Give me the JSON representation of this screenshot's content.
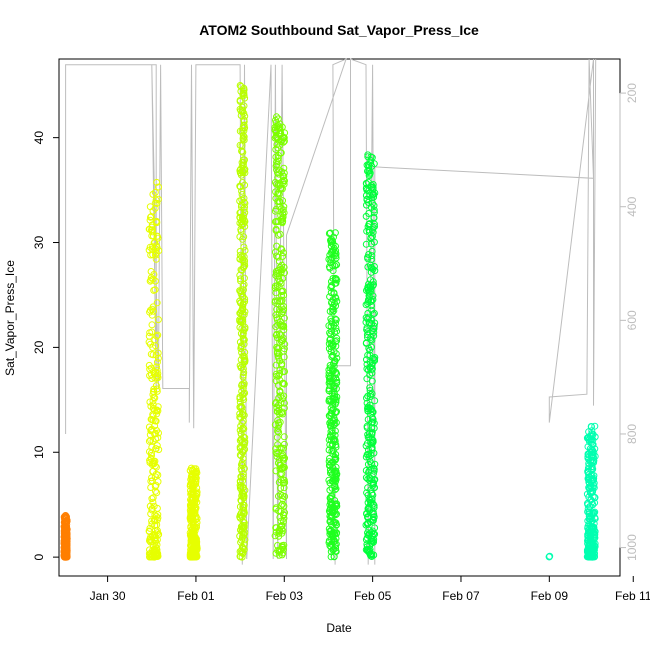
{
  "chart_data": {
    "type": "scatter",
    "title": "ATOM2 Southbound Sat_Vapor_Press_Ice",
    "xlabel": "Date",
    "ylabel": "Sat_Vapor_Press_Ice",
    "x_ticks": [
      "Jan 30",
      "Feb 01",
      "Feb 03",
      "Feb 05",
      "Feb 07",
      "Feb 09",
      "Feb 11"
    ],
    "y_ticks": [
      "0",
      "10",
      "20",
      "30",
      "40"
    ],
    "y2_ticks": [
      "200",
      "400",
      "600",
      "800",
      "1000"
    ],
    "x_range_days": [
      -1.1,
      11.6
    ],
    "ylim": [
      -1.8,
      47.5
    ],
    "y2lim": [
      1050,
      140
    ],
    "y2_reversed": true,
    "grid": false,
    "legend": "none",
    "colors": {
      "orange": "#ff7f00",
      "yellow": "#e6ff00",
      "yellow_green": "#b9ff00",
      "lime": "#7dff00",
      "light_green": "#4dff00",
      "green": "#1fff1f",
      "spring_green": "#00ff3a",
      "aqua": "#00ffb0",
      "pressure_line": "#bdbdbd"
    },
    "flights": [
      {
        "date_day": -0.95,
        "width": 0.07,
        "ymin": 0.0,
        "ymax": 4.0,
        "color": "orange",
        "style": "dense"
      },
      {
        "date_day": 1.05,
        "width": 0.22,
        "ymin": 0.0,
        "ymax": 36.0,
        "color": "yellow",
        "style": "dense"
      },
      {
        "date_day": 1.95,
        "width": 0.16,
        "ymin": 0.0,
        "ymax": 8.5,
        "color": "yellow",
        "style": "dense"
      },
      {
        "date_day": 3.05,
        "width": 0.12,
        "ymin": 0.0,
        "ymax": 45.5,
        "color": "yellow_green",
        "style": "scatter"
      },
      {
        "date_day": 3.9,
        "width": 0.22,
        "ymin": 0.0,
        "ymax": 42.0,
        "color": "lime",
        "style": "scatter"
      },
      {
        "date_day": 5.1,
        "width": 0.18,
        "ymin": 0.0,
        "ymax": 31.0,
        "color": "green",
        "style": "scatter"
      },
      {
        "date_day": 5.95,
        "width": 0.2,
        "ymin": 0.0,
        "ymax": 38.5,
        "color": "spring_green",
        "style": "scatter"
      },
      {
        "date_day": 10.0,
        "width": 0.05,
        "ymin": 0.0,
        "ymax": 0.1,
        "color": "aqua",
        "style": "sparse"
      },
      {
        "date_day": 10.95,
        "width": 0.18,
        "ymin": 0.0,
        "ymax": 12.5,
        "color": "aqua",
        "style": "dense"
      }
    ],
    "pressure_trace": [
      [
        -0.95,
        150
      ],
      [
        -0.95,
        290
      ],
      [
        -0.95,
        800
      ],
      [
        -0.95,
        150
      ],
      [
        1.1,
        150
      ],
      [
        1.1,
        720
      ],
      [
        1.0,
        150
      ],
      [
        1.15,
        720
      ],
      [
        1.2,
        150
      ],
      [
        1.25,
        720
      ],
      [
        1.85,
        720
      ],
      [
        1.85,
        780
      ],
      [
        1.9,
        150
      ],
      [
        1.95,
        790
      ],
      [
        2.0,
        150
      ],
      [
        3.0,
        150
      ],
      [
        3.05,
        1030
      ],
      [
        3.1,
        150
      ],
      [
        3.15,
        1020
      ],
      [
        3.7,
        150
      ],
      [
        3.75,
        1020
      ],
      [
        3.8,
        150
      ],
      [
        3.85,
        1020
      ],
      [
        3.95,
        150
      ],
      [
        4.05,
        1020
      ],
      [
        4.05,
        450
      ],
      [
        5.4,
        140
      ],
      [
        5.1,
        150
      ],
      [
        5.15,
        1030
      ],
      [
        5.15,
        680
      ],
      [
        5.5,
        680
      ],
      [
        5.5,
        140
      ],
      [
        5.85,
        150
      ],
      [
        5.9,
        1030
      ],
      [
        6.0,
        150
      ],
      [
        6.05,
        1030
      ],
      [
        6.05,
        330
      ],
      [
        11.0,
        350
      ],
      [
        10.9,
        140
      ],
      [
        10.85,
        730
      ],
      [
        10.0,
        735
      ],
      [
        10.0,
        780
      ],
      [
        11.0,
        140
      ],
      [
        11.0,
        750
      ],
      [
        11.05,
        140
      ]
    ]
  }
}
